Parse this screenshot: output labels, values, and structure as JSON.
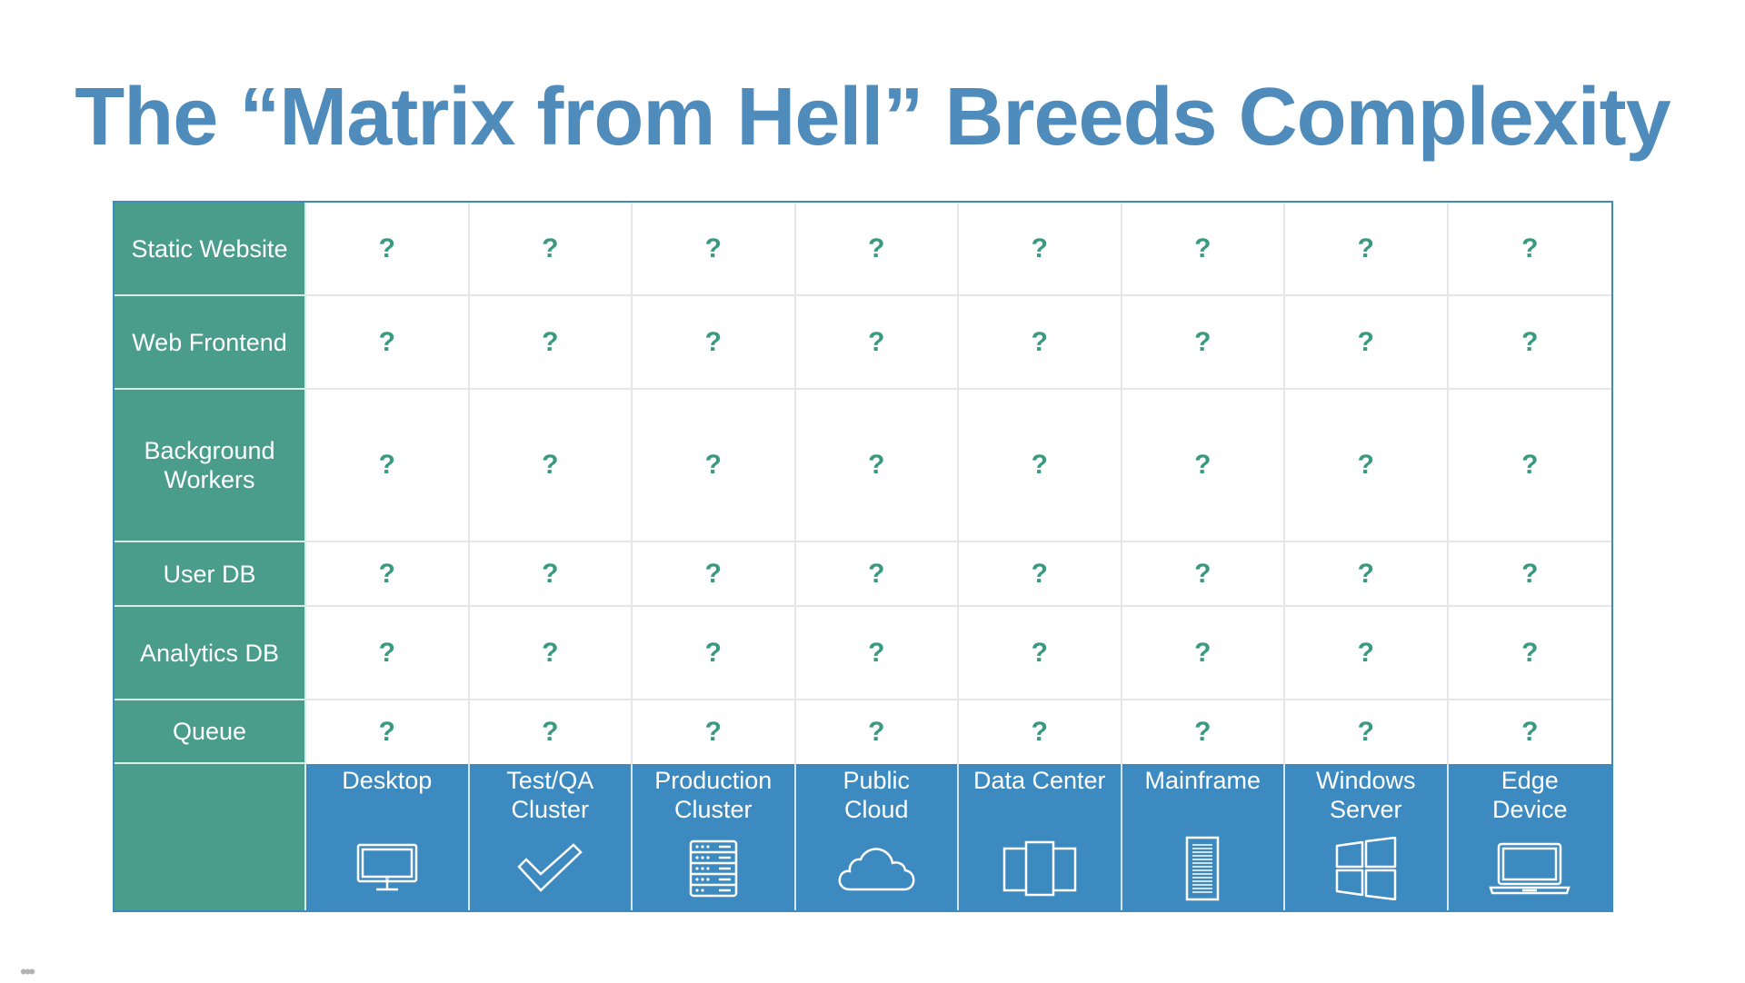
{
  "slide": {
    "title": "The “Matrix from Hell” Breeds Complexity"
  },
  "matrix": {
    "rows": [
      {
        "label": "Static Website"
      },
      {
        "label": "Web Frontend"
      },
      {
        "label": "Background Workers"
      },
      {
        "label": "User DB"
      },
      {
        "label": "Analytics DB"
      },
      {
        "label": "Queue"
      }
    ],
    "columns": [
      {
        "label": "Desktop",
        "icon": "desktop-monitor-icon"
      },
      {
        "label": "Test/QA Cluster",
        "icon": "checkmark-icon"
      },
      {
        "label": "Production Cluster",
        "icon": "server-rack-icon"
      },
      {
        "label": "Public Cloud",
        "icon": "cloud-icon"
      },
      {
        "label": "Data Center",
        "icon": "data-center-icon"
      },
      {
        "label": "Mainframe",
        "icon": "mainframe-icon"
      },
      {
        "label": "Windows Server",
        "icon": "windows-logo-icon"
      },
      {
        "label": "Edge Device",
        "icon": "laptop-icon"
      }
    ],
    "cell_value": "?",
    "colors": {
      "row_header": "#4a9d8a",
      "column_header": "#3d8ac0",
      "question_mark": "#3a9a80",
      "title": "#4f8bbb"
    }
  },
  "footer": {
    "menu_glyph": "•••"
  }
}
